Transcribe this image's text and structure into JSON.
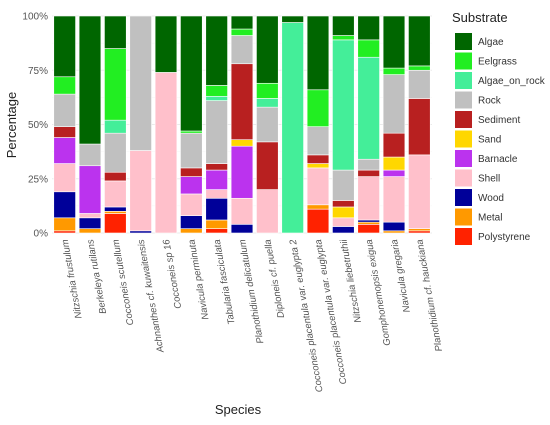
{
  "chart_data": {
    "type": "bar",
    "stacked": true,
    "xlabel": "Species",
    "ylabel": "Percentage",
    "ylim": [
      0,
      100
    ],
    "ytick_labels": [
      "0%",
      "25%",
      "50%",
      "75%",
      "100%"
    ],
    "ytick_values": [
      0,
      25,
      50,
      75,
      100
    ],
    "grid": true,
    "legend_position": "right",
    "legend_title": "Substrate",
    "categories": [
      "Nitzschia frustulum",
      "Berkeleya rutilans",
      "Cocconeis scutellum",
      "Achnanthes cf. kuwaitensis",
      "Cocconeis sp 16",
      "Navicula perminuta",
      "Tabularia fasciculata",
      "Planothidium delicatulum",
      "Diploneis cf. puella",
      "Cocconeis placentula var. euglypta 2",
      "Cocconeis placentula var. euglypta",
      "Nitzschia liebetruthii",
      "Gomphonemopsis exigua",
      "Navicula gregaria",
      "Planothidium cf. hauckiana"
    ],
    "series": [
      {
        "name": "Polystyrene",
        "color": "#FF2200",
        "values": [
          1,
          0,
          9,
          0,
          0,
          0,
          2,
          0,
          0,
          0,
          11,
          0,
          4,
          0,
          1
        ]
      },
      {
        "name": "Metal",
        "color": "#FF9900",
        "values": [
          6,
          2,
          1,
          0,
          0,
          2,
          4,
          0,
          0,
          0,
          2,
          0,
          1,
          1,
          1
        ]
      },
      {
        "name": "Wood",
        "color": "#000099",
        "values": [
          12,
          5,
          2,
          1,
          0,
          6,
          10,
          4,
          0,
          0,
          0,
          3,
          1,
          4,
          0
        ]
      },
      {
        "name": "Shell",
        "color": "#FFC0CB",
        "values": [
          13,
          2,
          12,
          37,
          74,
          10,
          4,
          12,
          20,
          0,
          17,
          4,
          20,
          21,
          34
        ]
      },
      {
        "name": "Barnacle",
        "color": "#BB33EE",
        "values": [
          12,
          22,
          0,
          0,
          0,
          8,
          9,
          24,
          0,
          0,
          0,
          0,
          0,
          3,
          0
        ]
      },
      {
        "name": "Sand",
        "color": "#FFD700",
        "values": [
          0,
          0,
          0,
          0,
          0,
          0,
          0,
          3,
          0,
          0,
          2,
          5,
          0,
          6,
          0
        ]
      },
      {
        "name": "Sediment",
        "color": "#B82020",
        "values": [
          5,
          0,
          4,
          0,
          0,
          4,
          3,
          35,
          22,
          0,
          4,
          3,
          3,
          11,
          26
        ]
      },
      {
        "name": "Rock",
        "color": "#C0C0C0",
        "values": [
          15,
          10,
          18,
          62,
          0,
          16,
          29,
          13,
          16,
          0,
          13,
          14,
          5,
          27,
          13
        ]
      },
      {
        "name": "Algae_on_rock",
        "color": "#44EE99",
        "values": [
          0,
          0,
          6,
          0,
          0,
          0,
          2,
          0,
          4,
          97,
          0,
          60,
          47,
          0,
          0
        ]
      },
      {
        "name": "Eelgrass",
        "color": "#22EE22",
        "values": [
          8,
          0,
          33,
          0,
          0,
          1,
          5,
          3,
          7,
          0,
          17,
          2,
          8,
          3,
          2
        ]
      },
      {
        "name": "Algae",
        "color": "#006600",
        "values": [
          28,
          59,
          15,
          0,
          26,
          53,
          32,
          6,
          31,
          3,
          34,
          9,
          11,
          24,
          23
        ]
      }
    ],
    "legend_order": [
      "Algae",
      "Eelgrass",
      "Algae_on_rock",
      "Rock",
      "Sediment",
      "Sand",
      "Barnacle",
      "Shell",
      "Wood",
      "Metal",
      "Polystyrene"
    ]
  }
}
